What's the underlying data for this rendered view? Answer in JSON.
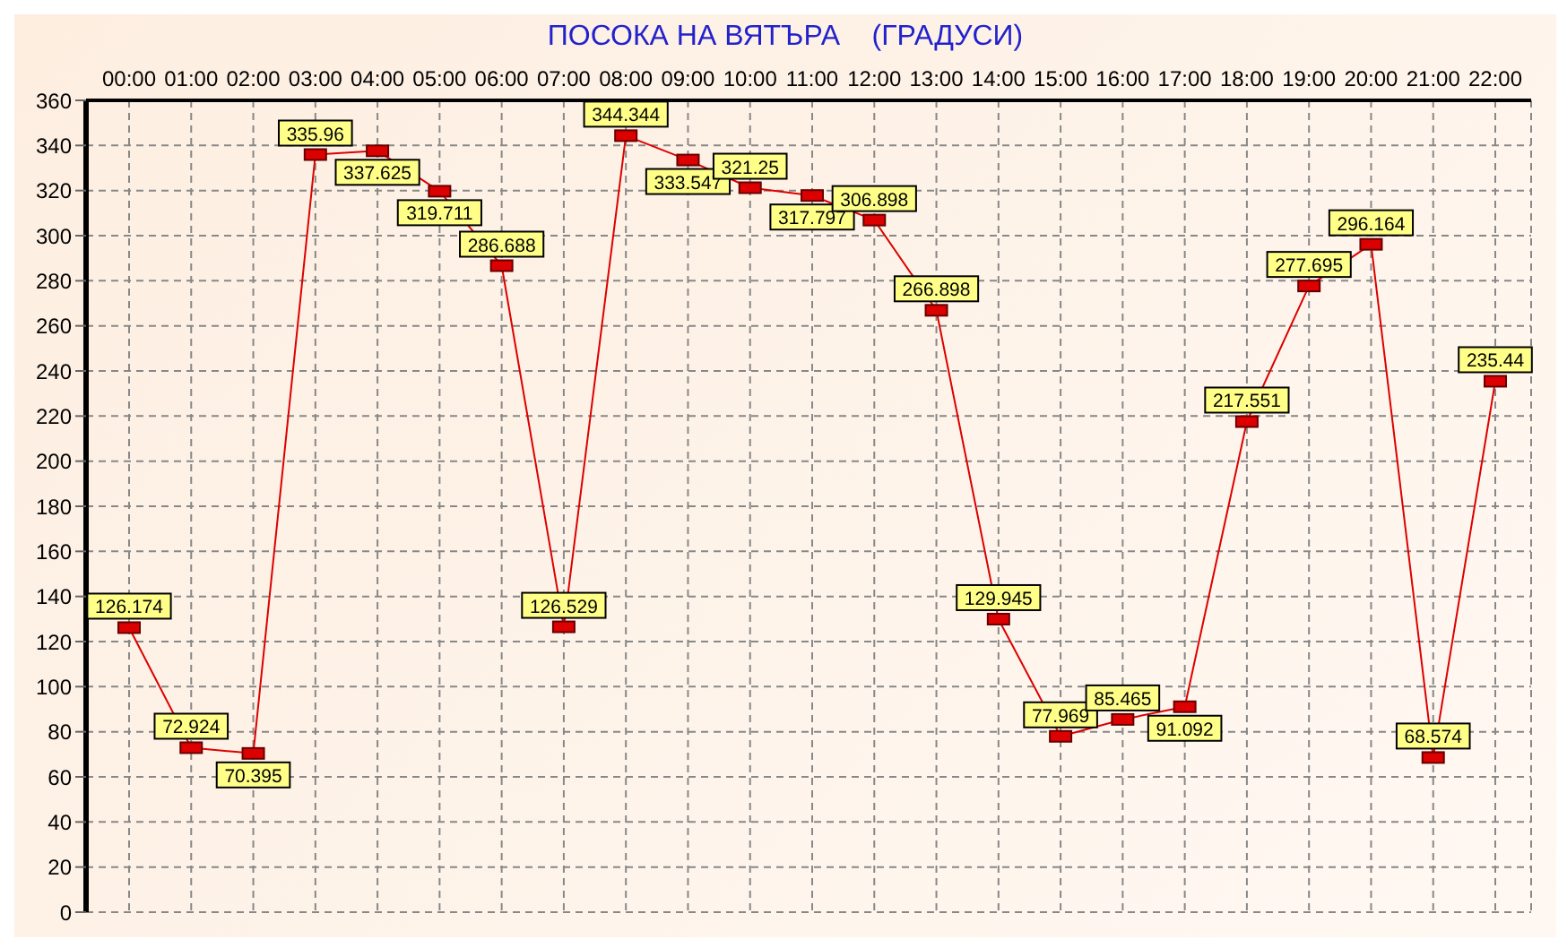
{
  "chart_data": {
    "type": "line",
    "title": "ПОСОКА НА ВЯТЪРА    (ГРАДУСИ)",
    "categories": [
      "00:00",
      "01:00",
      "02:00",
      "03:00",
      "04:00",
      "05:00",
      "06:00",
      "07:00",
      "08:00",
      "09:00",
      "10:00",
      "11:00",
      "12:00",
      "13:00",
      "14:00",
      "15:00",
      "16:00",
      "17:00",
      "18:00",
      "19:00",
      "20:00",
      "21:00",
      "22:00"
    ],
    "series": [
      {
        "color": "#dd0000",
        "values": [
          126.174,
          72.924,
          70.395,
          335.96,
          337.625,
          319.711,
          286.688,
          126.529,
          344.344,
          333.547,
          321.25,
          317.797,
          306.898,
          266.898,
          129.945,
          77.969,
          85.465,
          91.092,
          217.551,
          277.695,
          296.164,
          68.574,
          235.44
        ]
      }
    ],
    "ylim": [
      0,
      360
    ],
    "yticks": [
      0,
      20,
      40,
      60,
      80,
      100,
      120,
      140,
      160,
      180,
      200,
      220,
      240,
      260,
      280,
      300,
      320,
      340,
      360
    ],
    "grid": true,
    "marker": "square",
    "data_labels": true,
    "line_style": "solid"
  }
}
